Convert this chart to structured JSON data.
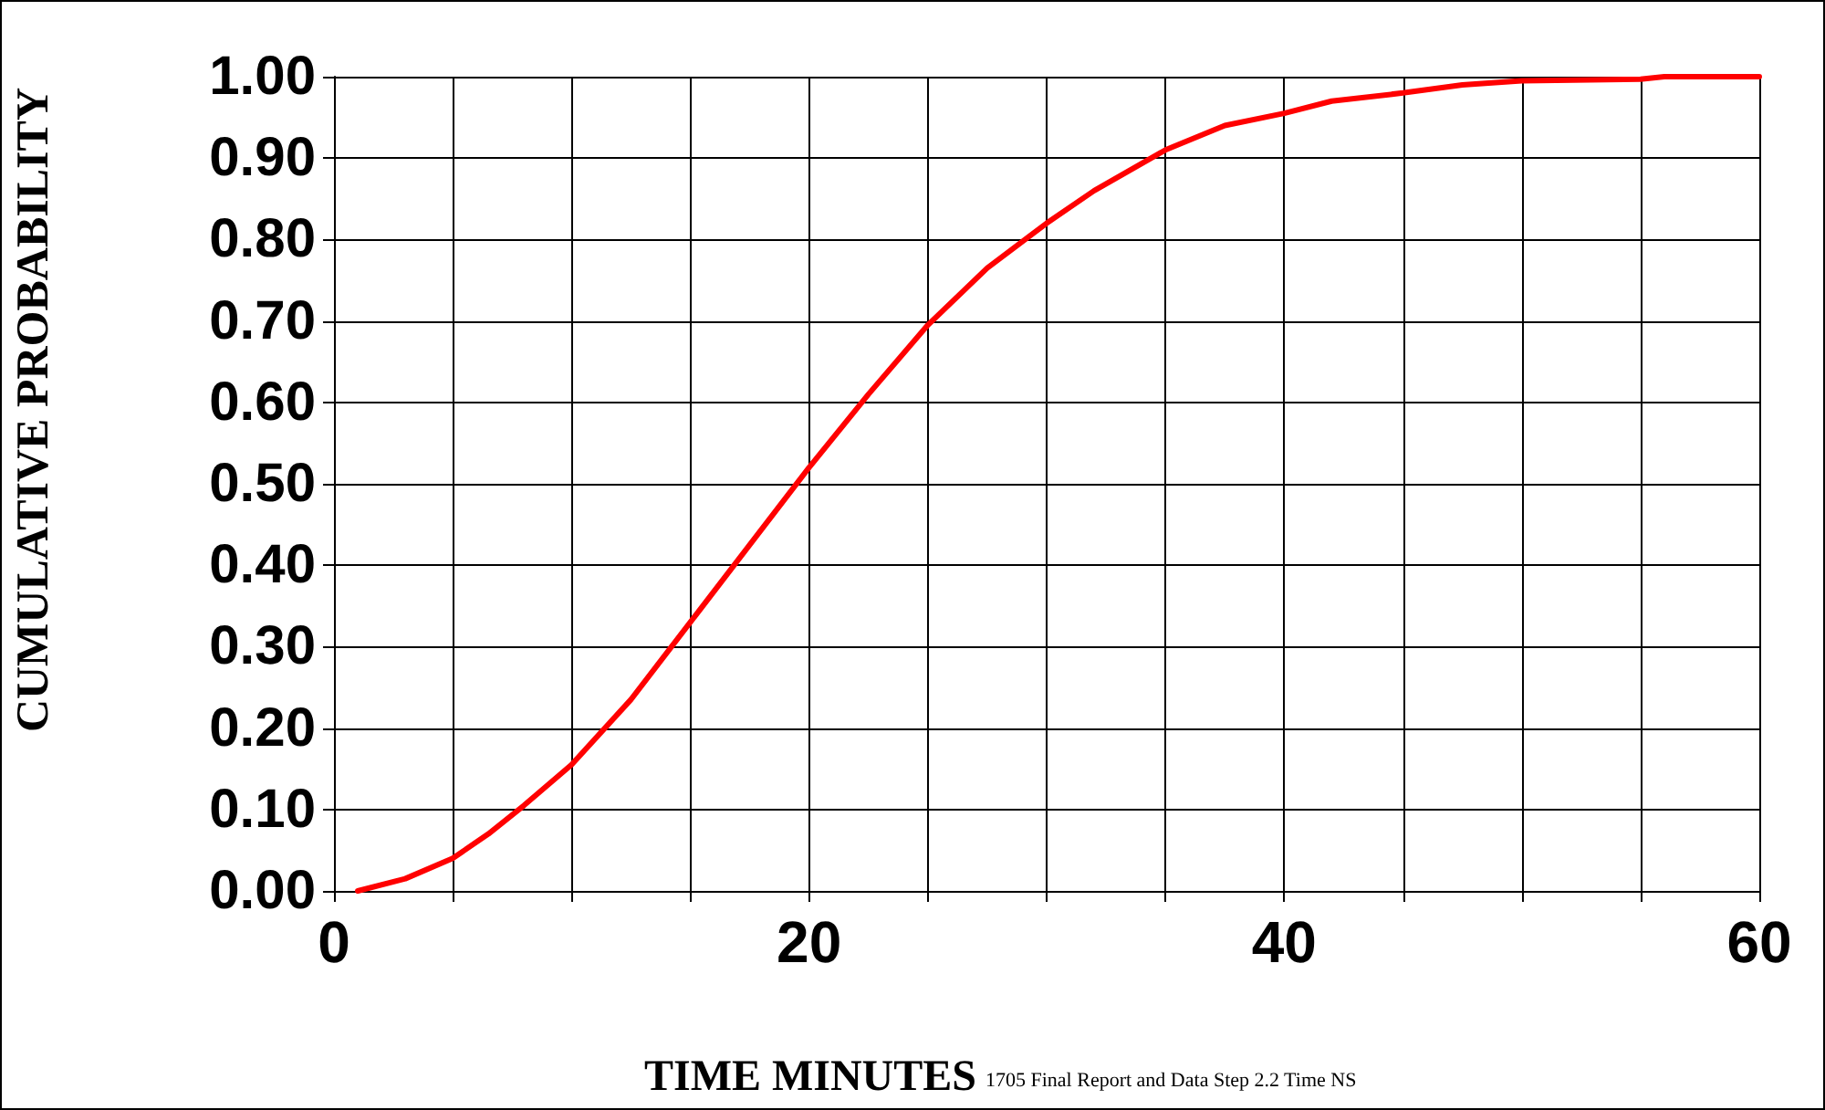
{
  "chart_data": {
    "type": "line",
    "xlabel": "TIME MINUTES",
    "ylabel": "CUMULATIVE PROBABILITY",
    "annotations": [
      "1705 Final Report and Data Step 2.2 Time NS"
    ],
    "x": [
      1,
      3,
      5,
      6.5,
      8,
      10,
      12.5,
      15,
      17.5,
      20,
      22.5,
      25,
      27.5,
      30,
      32,
      35,
      37.5,
      40,
      42,
      45,
      47.5,
      50,
      55,
      56,
      60
    ],
    "series": [
      {
        "color": "#ff0000",
        "values": [
          0,
          0.015,
          0.04,
          0.07,
          0.105,
          0.155,
          0.235,
          0.33,
          0.425,
          0.52,
          0.61,
          0.695,
          0.765,
          0.82,
          0.86,
          0.91,
          0.94,
          0.955,
          0.97,
          0.98,
          0.99,
          0.995,
          0.997,
          1,
          1
        ]
      }
    ],
    "xlim": [
      0,
      60
    ],
    "xticks": [
      0,
      {
        "value": 5,
        "label": null
      },
      {
        "value": 10,
        "label": null
      },
      {
        "value": 15,
        "label": null
      },
      20,
      {
        "value": 25,
        "label": null
      },
      {
        "value": 30,
        "label": null
      },
      {
        "value": 35,
        "label": null
      },
      40,
      {
        "value": 45,
        "label": null
      },
      {
        "value": 50,
        "label": null
      },
      {
        "value": 55,
        "label": null
      },
      60
    ],
    "ylim": [
      0,
      1
    ],
    "yticks": [
      {
        "value": 0,
        "label": "0.00"
      },
      {
        "value": 0.1,
        "label": "0.10"
      },
      {
        "value": 0.2,
        "label": "0.20"
      },
      {
        "value": 0.3,
        "label": "0.30"
      },
      {
        "value": 0.4,
        "label": "0.40"
      },
      {
        "value": 0.5,
        "label": "0.50"
      },
      {
        "value": 0.6,
        "label": "0.60"
      },
      {
        "value": 0.7,
        "label": "0.70"
      },
      {
        "value": 0.8,
        "label": "0.80"
      },
      {
        "value": 0.9,
        "label": "0.90"
      },
      {
        "value": 1,
        "label": "1.00"
      }
    ],
    "grid": true,
    "marker": "none",
    "line_style": "solid"
  }
}
